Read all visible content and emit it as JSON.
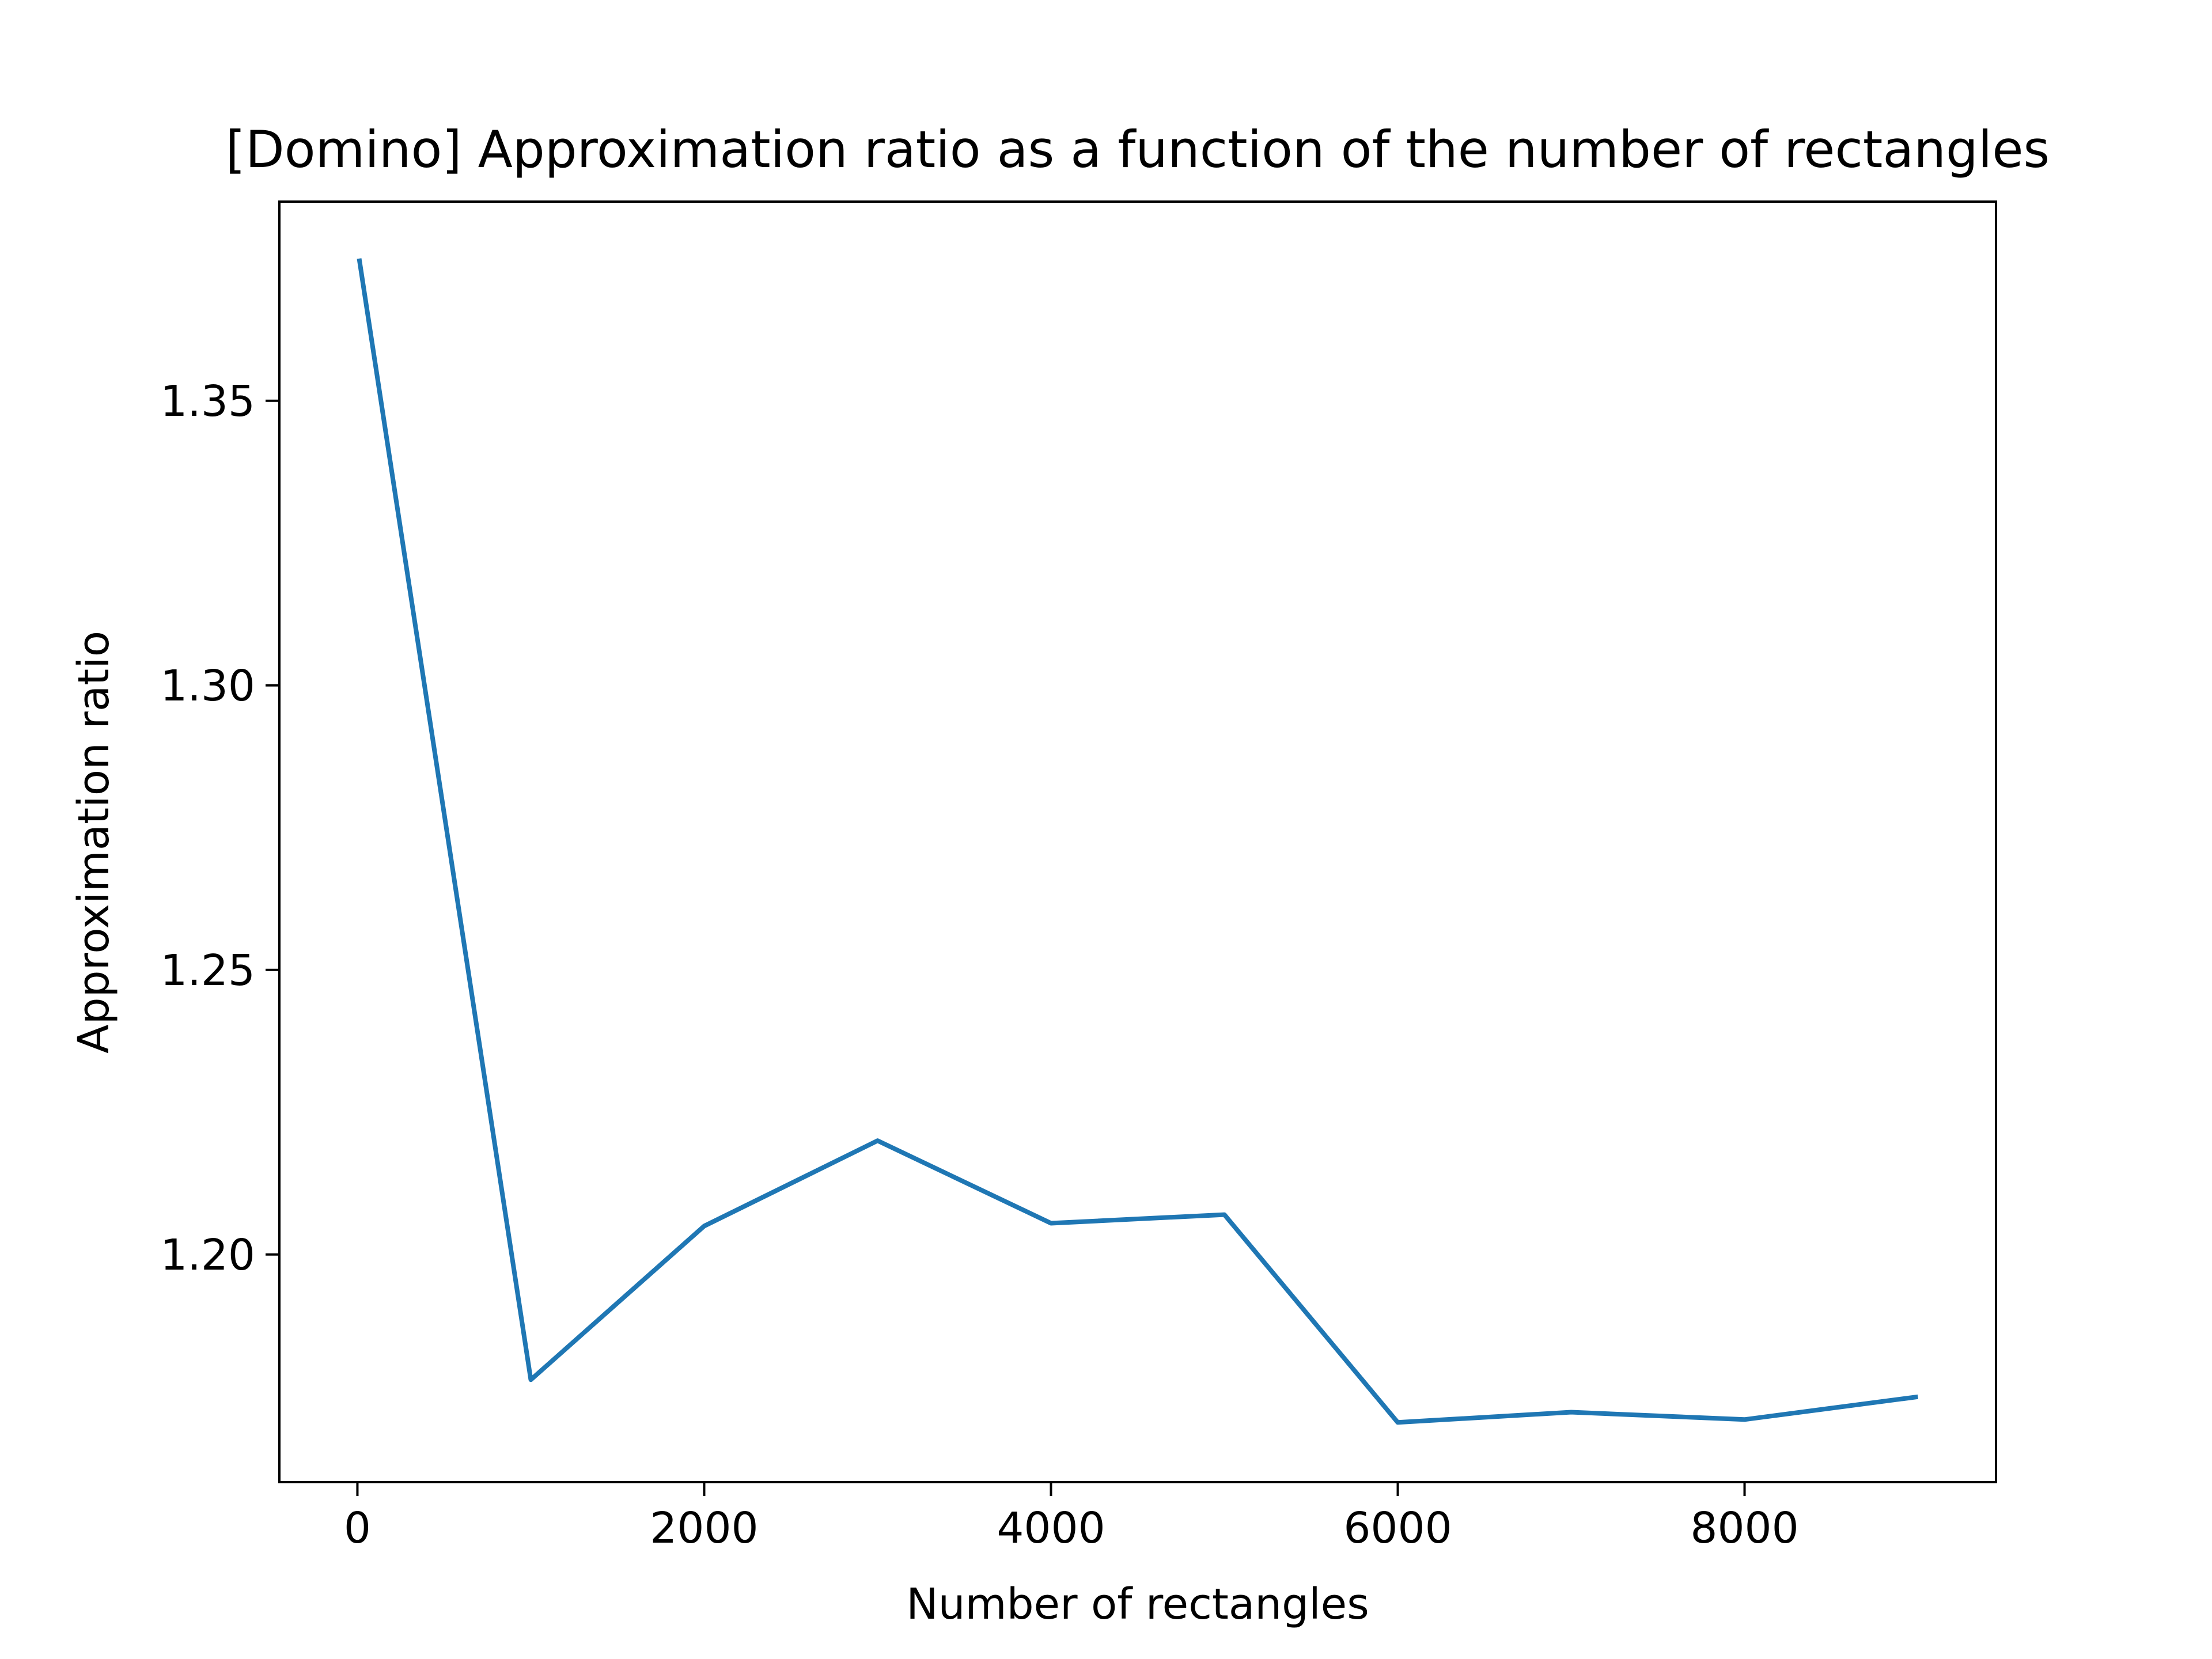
{
  "chart_data": {
    "type": "line",
    "title": "[Domino] Approximation ratio as a function of the number of rectangles",
    "xlabel": "Number of rectangles",
    "ylabel": "Approximation ratio",
    "x": [
      10,
      1000,
      2000,
      3000,
      4000,
      5000,
      6000,
      7000,
      8000,
      9000
    ],
    "series": [
      {
        "values": [
          1.375,
          1.178,
          1.205,
          1.22,
          1.2055,
          1.207,
          1.1705,
          1.1723,
          1.171,
          1.175
        ],
        "color": "#1f77b4"
      }
    ],
    "xlim": [
      -450,
      9450
    ],
    "ylim": [
      1.16,
      1.385
    ],
    "xticks": [
      0,
      2000,
      4000,
      6000,
      8000
    ],
    "xtick_labels": [
      "0",
      "2000",
      "4000",
      "6000",
      "8000"
    ],
    "yticks": [
      1.2,
      1.25,
      1.3,
      1.35
    ],
    "ytick_labels": [
      "1.20",
      "1.25",
      "1.30",
      "1.35"
    ],
    "grid": false,
    "legend": "none"
  }
}
